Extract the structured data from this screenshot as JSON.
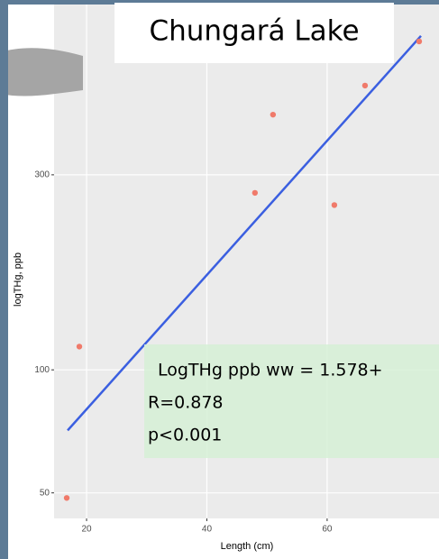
{
  "chart_data": {
    "type": "scatter",
    "title": "Chungará Lake",
    "x_label": "Length (cm)",
    "y_label": "logTHg, ppb",
    "x": [
      16.7,
      18.8,
      48.0,
      51.0,
      61.2,
      66.3,
      75.3
    ],
    "values": [
      48.6,
      114,
      271,
      421,
      253,
      496,
      636
    ],
    "color": "#f07a6a",
    "fit": {
      "x": [
        16.85,
        75.6
      ],
      "values": [
        71.1,
        656
      ],
      "color": "#3b5fe0"
    },
    "annotations": [
      "LogTHg ppb ww = 1.578+",
      "R=0.878",
      "p<0.001"
    ],
    "xlim": [
      14.6,
      78.6
    ],
    "xticks": [
      20,
      40,
      60
    ],
    "ylim": [
      43.3,
      783
    ],
    "yticks": [
      50,
      100,
      300
    ],
    "log_y": true,
    "grid": true
  }
}
